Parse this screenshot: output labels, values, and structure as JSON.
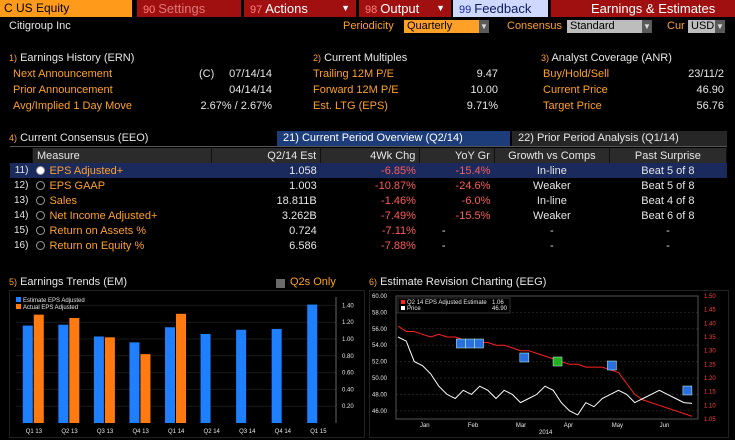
{
  "topbar": {
    "ticker": "C US Equity",
    "settings": {
      "num": "90",
      "label": "Settings"
    },
    "actions": {
      "num": "97",
      "label": "Actions"
    },
    "output": {
      "num": "98",
      "label": "Output"
    },
    "feedback": {
      "num": "99",
      "label": "Feedback"
    },
    "title": "Earnings & Estimates"
  },
  "subbar": {
    "company": "Citigroup Inc",
    "periodicity_label": "Periodicity",
    "periodicity_value": "Quarterly",
    "consensus_label": "Consensus",
    "consensus_value": "Standard",
    "cur_label": "Cur",
    "cur_value": "USD"
  },
  "earnings_history": {
    "num": "1)",
    "title": "Earnings History (ERN)",
    "rows": [
      {
        "label": "Next Announcement",
        "flag": "(C)",
        "value": "07/14/14"
      },
      {
        "label": "Prior Announcement",
        "flag": "",
        "value": "04/14/14"
      },
      {
        "label": "Avg/Implied 1 Day Move",
        "flag": "",
        "value": "2.67% / 2.67%"
      }
    ]
  },
  "current_multiples": {
    "num": "2)",
    "title": "Current Multiples",
    "rows": [
      {
        "label": "Trailing 12M P/E",
        "value": "9.47"
      },
      {
        "label": "Forward 12M P/E",
        "value": "10.00"
      },
      {
        "label": "Est. LTG (EPS)",
        "value": "9.71%"
      }
    ]
  },
  "analyst_coverage": {
    "num": "3)",
    "title": "Analyst Coverage (ANR)",
    "rows": [
      {
        "label": "Buy/Hold/Sell",
        "value": "23/11/2"
      },
      {
        "label": "Current Price",
        "value": "46.90"
      },
      {
        "label": "Target Price",
        "value": "56.76"
      }
    ]
  },
  "consensus": {
    "num": "4)",
    "title": "Current Consensus (EEO)",
    "tab_active": {
      "num": "21)",
      "label": "Current Period Overview (Q2/14)"
    },
    "tab_inactive": {
      "num": "22)",
      "label": "Prior Period Analysis (Q1/14)"
    },
    "headers": [
      "Measure",
      "Q2/14 Est",
      "4Wk Chg",
      "YoY Gr",
      "Growth vs Comps",
      "Past Surprise"
    ],
    "rows": [
      {
        "n": "11)",
        "measure": "EPS Adjusted+",
        "est": "1.058",
        "chg": "-6.85%",
        "yoy": "-15.4%",
        "comps": "In-line",
        "surprise": "Beat 5 of 8"
      },
      {
        "n": "12)",
        "measure": "EPS GAAP",
        "est": "1.003",
        "chg": "-10.87%",
        "yoy": "-24.6%",
        "comps": "Weaker",
        "surprise": "Beat 5 of 8"
      },
      {
        "n": "13)",
        "measure": "Sales",
        "est": "18.811B",
        "chg": "-1.46%",
        "yoy": "-6.0%",
        "comps": "In-line",
        "surprise": "Beat 4 of 8"
      },
      {
        "n": "14)",
        "measure": "Net Income Adjusted+",
        "est": "3.262B",
        "chg": "-7.49%",
        "yoy": "-15.5%",
        "comps": "Weaker",
        "surprise": "Beat 6 of 8"
      },
      {
        "n": "15)",
        "measure": "Return on Assets %",
        "est": "0.724",
        "chg": "-7.11%",
        "yoy": "-",
        "comps": "-",
        "surprise": "-"
      },
      {
        "n": "16)",
        "measure": "Return on Equity %",
        "est": "6.586",
        "chg": "-7.88%",
        "yoy": "-",
        "comps": "-",
        "surprise": "-"
      }
    ]
  },
  "trends": {
    "num": "5)",
    "title": "Earnings Trends (EM)",
    "q2s_label": "Q2s Only"
  },
  "revision": {
    "num": "6)",
    "title": "Estimate Revision Charting (EEG)"
  },
  "chart_data": [
    {
      "type": "bar",
      "categories": [
        "Q1 13",
        "Q2 13",
        "Q3 13",
        "Q4 13",
        "Q1 14",
        "Q2 14",
        "Q3 14",
        "Q4 14",
        "Q1 15"
      ],
      "series": [
        {
          "name": "Estimate EPS Adjusted",
          "color": "#1e7fff",
          "values": [
            1.16,
            1.17,
            1.03,
            0.96,
            1.14,
            1.06,
            1.11,
            1.12,
            1.41
          ]
        },
        {
          "name": "Actual EPS Adjusted",
          "color": "#ff7a10",
          "values": [
            1.29,
            1.25,
            1.02,
            0.82,
            1.3,
            null,
            null,
            null,
            null
          ]
        }
      ],
      "ylim": [
        0,
        1.5
      ],
      "yticks": [
        "1.40",
        "1.20",
        "1.00",
        "0.80",
        "0.60",
        "0.40",
        "0.20"
      ],
      "legend": "top-left"
    },
    {
      "type": "line",
      "x_labels": [
        "Jan",
        "Feb",
        "Mar",
        "Apr",
        "May",
        "Jun"
      ],
      "year_label": "2014",
      "series": [
        {
          "name": "Q2 14 EPS Adjusted Estimate",
          "last": "1.06",
          "color": "#ff2020",
          "values": [
            1.39,
            1.37,
            1.37,
            1.36,
            1.35,
            1.36,
            1.35,
            1.35,
            1.34,
            1.34,
            1.33,
            1.33,
            1.32,
            1.32,
            1.31,
            1.3,
            1.3,
            1.29,
            1.28,
            1.27,
            1.26,
            1.25,
            1.25,
            1.24,
            1.24,
            1.24,
            1.23,
            1.22,
            1.18,
            1.14,
            1.12,
            1.11,
            1.1,
            1.09,
            1.08,
            1.07,
            1.06
          ]
        },
        {
          "name": "Price",
          "last": "46.90",
          "color": "#ffffff",
          "values": [
            55.0,
            54.5,
            52.0,
            51.5,
            50.5,
            49.0,
            48.0,
            47.5,
            48.5,
            48.0,
            49.0,
            48.5,
            47.5,
            48.5,
            48.0,
            47.0,
            47.5,
            48.0,
            49.0,
            48.5,
            47.0,
            46.0,
            45.5,
            47.0,
            46.5,
            47.5,
            48.0,
            48.5,
            48.0,
            47.0,
            47.5,
            48.0,
            48.5,
            48.0,
            47.5,
            47.0,
            46.9
          ]
        }
      ],
      "ylim_left": [
        45.0,
        60.0
      ],
      "ylim_right": [
        1.05,
        1.5
      ],
      "left_ticks": [
        "60.00",
        "58.00",
        "56.00",
        "54.00",
        "52.00",
        "50.00",
        "48.00",
        "46.00"
      ],
      "right_ticks": [
        "1.50",
        "1.45",
        "1.40",
        "1.35",
        "1.30",
        "1.25",
        "1.20",
        "1.15",
        "1.10",
        "1.05"
      ],
      "legend": "top-left"
    }
  ]
}
